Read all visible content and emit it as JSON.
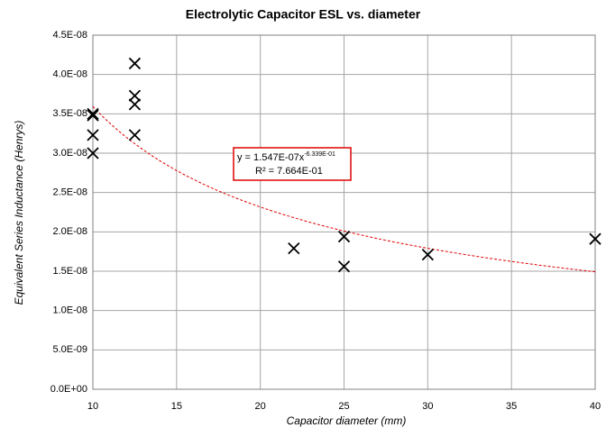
{
  "chart_data": {
    "type": "scatter",
    "title": "Electrolytic Capacitor  ESL  vs.  diameter",
    "x_label": "Capacitor diameter (mm)",
    "y_label": "Equivalent Series Inductance (Henrys)",
    "x": [
      10,
      10,
      10,
      10,
      12.5,
      12.5,
      12.5,
      12.5,
      22,
      25,
      25,
      30,
      40
    ],
    "values": [
      3.5e-08,
      3.48e-08,
      3.23e-08,
      3e-08,
      4.14e-08,
      3.73e-08,
      3.62e-08,
      3.23e-08,
      1.79e-08,
      1.94e-08,
      1.56e-08,
      1.71e-08,
      1.91e-08
    ],
    "color": "#000000",
    "xlim": [
      10,
      40
    ],
    "xticks": [
      10,
      15,
      20,
      25,
      30,
      35,
      40
    ],
    "ylim": [
      0,
      4.5e-08
    ],
    "yticks": [
      {
        "value": 0,
        "label": "0.0E+00"
      },
      {
        "value": 5e-09,
        "label": "5.0E-09"
      },
      {
        "value": 1e-08,
        "label": "1.0E-08"
      },
      {
        "value": 1.5e-08,
        "label": "1.5E-08"
      },
      {
        "value": 2e-08,
        "label": "2.0E-08"
      },
      {
        "value": 2.5e-08,
        "label": "2.5E-08"
      },
      {
        "value": 3e-08,
        "label": "3.0E-08"
      },
      {
        "value": 3.5e-08,
        "label": "3.5E-08"
      },
      {
        "value": 4e-08,
        "label": "4.0E-08"
      },
      {
        "value": 4.5e-08,
        "label": "4.5E-08"
      }
    ],
    "grid": true,
    "trendline": {
      "coefficient": 1.547e-07,
      "exponent": -0.6339,
      "color": "#e00000",
      "equation": "y = 1.547E-07x",
      "exponent_label": "-6.339E-01",
      "r2_label": "R² = 7.664E-01"
    }
  }
}
